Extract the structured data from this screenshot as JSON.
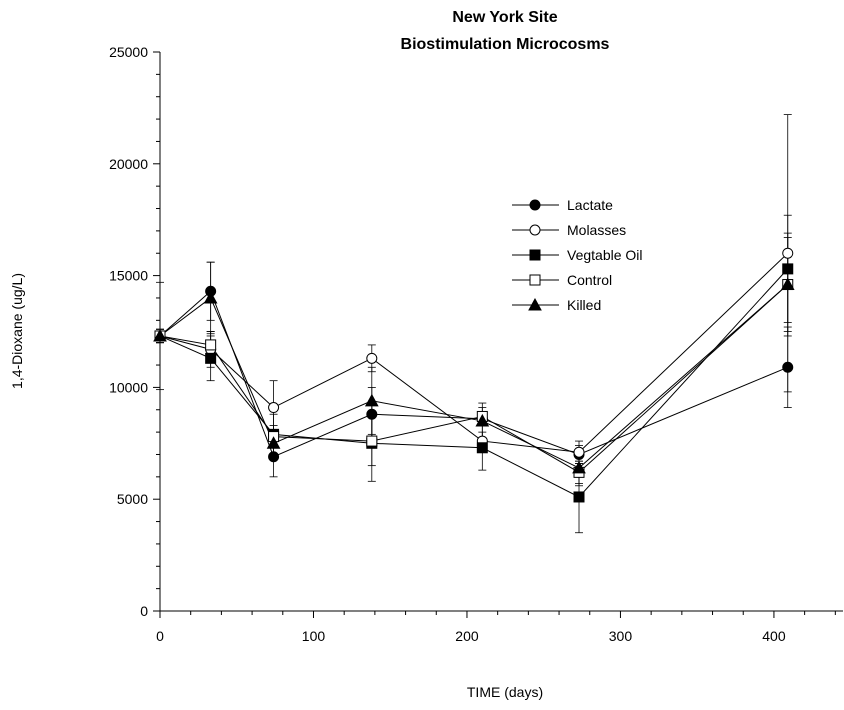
{
  "chart_data": {
    "type": "line",
    "title": "New York Site",
    "subtitle": "Biostimulation Microcosms",
    "xlabel": "TIME (days)",
    "ylabel": "1,4-Dioxane (ug/L)",
    "xlim": [
      0,
      445
    ],
    "ylim": [
      0,
      25000
    ],
    "x_ticks": [
      0,
      100,
      200,
      300,
      400
    ],
    "y_ticks": [
      0,
      5000,
      10000,
      15000,
      20000,
      25000
    ],
    "x_tick_labels": [
      "0",
      "100",
      "200",
      "300",
      "400"
    ],
    "y_tick_labels": [
      "0",
      "5000",
      "10000",
      "15000",
      "20000",
      "25000"
    ],
    "grid": false,
    "legend_position": "center-right",
    "x": [
      0,
      33,
      74,
      138,
      210,
      273,
      409
    ],
    "series": [
      {
        "name": "Lactate",
        "marker": "circle-filled",
        "values": [
          12300,
          14300,
          6900,
          8800,
          8600,
          7000,
          10900
        ],
        "errors": [
          2400,
          1300,
          900,
          1200,
          300,
          400,
          1800
        ]
      },
      {
        "name": "Molasses",
        "marker": "circle-open",
        "values": [
          12300,
          11700,
          9100,
          11300,
          7600,
          7100,
          16000
        ],
        "errors": [
          300,
          800,
          1200,
          600,
          400,
          500,
          6200
        ]
      },
      {
        "name": "Vegtable Oil",
        "marker": "square-filled",
        "values": [
          12300,
          11300,
          7900,
          7500,
          7300,
          5100,
          15300
        ],
        "errors": [
          300,
          1000,
          900,
          1700,
          1000,
          1600,
          2400
        ]
      },
      {
        "name": "Control",
        "marker": "square-open",
        "values": [
          12300,
          11900,
          7800,
          7600,
          8700,
          6200,
          14600
        ],
        "errors": [
          300,
          600,
          500,
          1100,
          400,
          500,
          2300
        ]
      },
      {
        "name": "Killed",
        "marker": "triangle-filled",
        "values": [
          12300,
          14000,
          7500,
          9400,
          8500,
          6400,
          14600
        ],
        "errors": [
          300,
          1600,
          600,
          1500,
          800,
          800,
          2100
        ]
      }
    ]
  }
}
